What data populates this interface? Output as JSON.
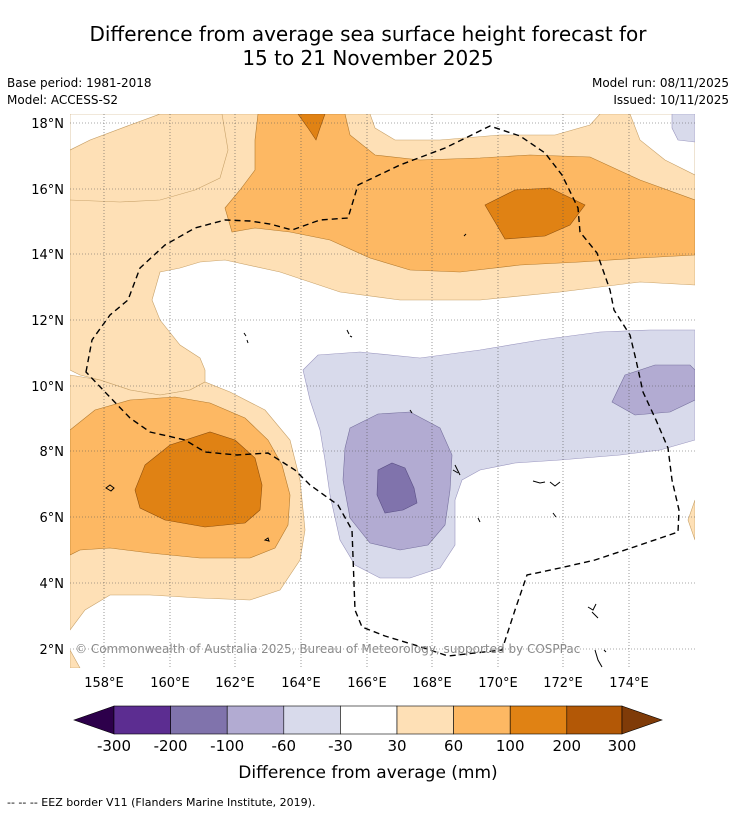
{
  "header": {
    "title_line1": "Difference from average sea surface height forecast for",
    "title_line2": "15 to 21 November 2025",
    "base_period": "Base period: 1981-2018",
    "model": "Model: ACCESS-S2",
    "model_run": "Model run: 08/11/2025",
    "issued": "Issued: 10/11/2025"
  },
  "map": {
    "lat_labels": [
      "18°N",
      "16°N",
      "14°N",
      "12°N",
      "10°N",
      "8°N",
      "6°N",
      "4°N",
      "2°N"
    ],
    "lon_labels": [
      "158°E",
      "160°E",
      "162°E",
      "164°E",
      "166°E",
      "168°E",
      "170°E",
      "172°E",
      "174°E"
    ],
    "copyright": "© Commonwealth of Australia 2025, Bureau of Meteorology, supported by COSPPac"
  },
  "colorbar": {
    "tick_labels": [
      "-300",
      "-200",
      "-100",
      "-60",
      "-30",
      "30",
      "60",
      "100",
      "200",
      "300"
    ],
    "label": "Difference from average (mm)",
    "colors": [
      "#2d004b",
      "#5c2d91",
      "#8073ac",
      "#b2abd2",
      "#d8daeb",
      "#ffffff",
      "#fee0b6",
      "#fdb863",
      "#e08214",
      "#b35806",
      "#7f3b08"
    ]
  },
  "footer": {
    "legend": "-- -- -- EEZ border V11 (Flanders Marine Institute, 2019)."
  }
}
